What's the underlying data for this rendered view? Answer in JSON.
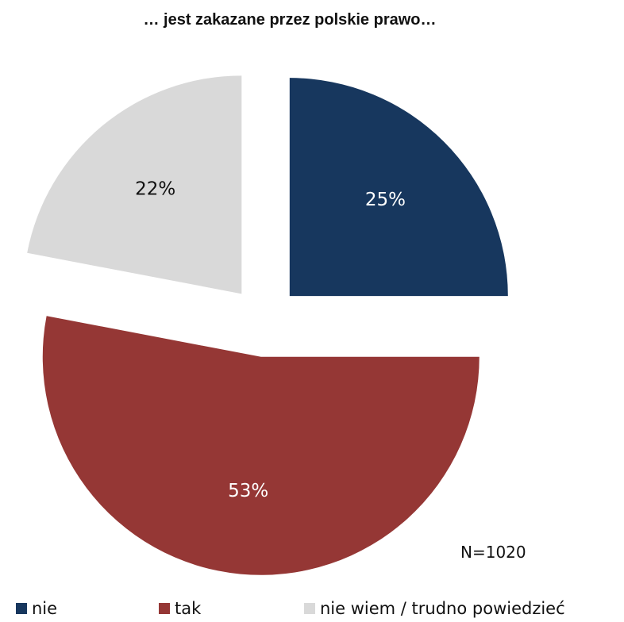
{
  "chart_data": {
    "type": "pie",
    "title": "… jest zakazane przez polskie prawo…",
    "slices": [
      {
        "label": "nie",
        "value": 25,
        "value_label": "25%",
        "color": "#17375e",
        "label_color": "#ffffff"
      },
      {
        "label": "tak",
        "value": 53,
        "value_label": "53%",
        "color": "#953735",
        "label_color": "#ffffff"
      },
      {
        "label": "nie wiem / trudno powiedzieć",
        "value": 22,
        "value_label": "22%",
        "color": "#d9d9d9",
        "label_color": "#111111"
      }
    ],
    "legend_position": "bottom",
    "exploded": true
  },
  "note": "N=1020"
}
